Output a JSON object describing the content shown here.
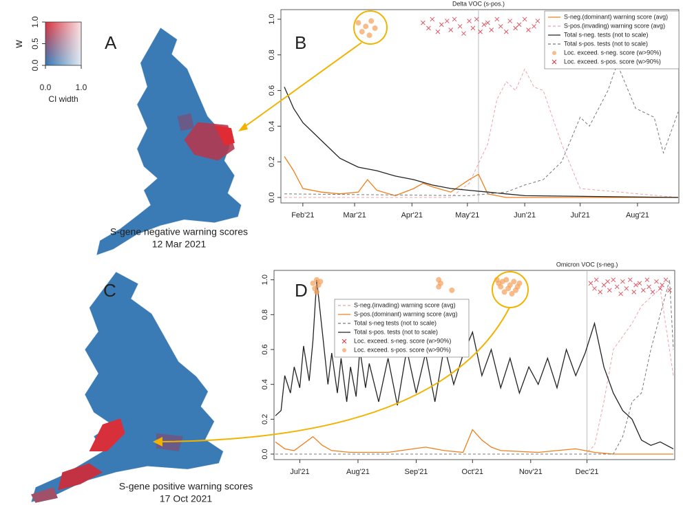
{
  "panels": [
    {
      "letter": "A",
      "caption": [
        "S-gene negative warning scores",
        "12 Mar 2021"
      ]
    },
    {
      "letter": "B"
    },
    {
      "letter": "C",
      "caption": [
        "S-gene positive warning scores",
        "17 Oct 2021"
      ]
    },
    {
      "letter": "D"
    }
  ],
  "colorbar": {
    "title": "w",
    "xlabel": "CI width",
    "yticks": [
      {
        "value": 0,
        "label": "0.0"
      },
      {
        "value": 0.5,
        "label": "0.5"
      },
      {
        "value": 1,
        "label": "1.0"
      }
    ],
    "xticks": [
      {
        "value": 0,
        "label": "0.0"
      },
      {
        "value": 1,
        "label": "1.0"
      }
    ]
  },
  "chart_data": [
    {
      "type": "line",
      "legend": "upper right",
      "xlim": [
        0,
        213
      ],
      "ylim": [
        0,
        1.05
      ],
      "xticks": [
        {
          "value": 10,
          "label": "Feb'21"
        },
        {
          "value": 38,
          "label": "Mar'21"
        },
        {
          "value": 69,
          "label": "Apr'21"
        },
        {
          "value": 99,
          "label": "May'21"
        },
        {
          "value": 130,
          "label": "Jun'21"
        },
        {
          "value": 160,
          "label": "Jul'21"
        },
        {
          "value": 191,
          "label": "Aug'21"
        }
      ],
      "yticks": [
        {
          "value": 0,
          "label": "0.0"
        },
        {
          "value": 0.2,
          "label": "0.2"
        },
        {
          "value": 0.4,
          "label": "0.4"
        },
        {
          "value": 0.6,
          "label": "0.6"
        },
        {
          "value": 0.8,
          "label": "0.8"
        },
        {
          "value": 1,
          "label": "1.0"
        }
      ],
      "vline": {
        "x": 105,
        "label": "Delta VOC (s-pos.)"
      },
      "series": [
        {
          "name": "S-neg.(dominant) warning score (avg)",
          "color": "#f07f1a",
          "style": "solid",
          "x": [
            0,
            5,
            10,
            20,
            30,
            40,
            45,
            50,
            60,
            70,
            75,
            80,
            90,
            100,
            105,
            110,
            120,
            213
          ],
          "values": [
            0.23,
            0.15,
            0.05,
            0.03,
            0.02,
            0.03,
            0.1,
            0.04,
            0.01,
            0.05,
            0.08,
            0.06,
            0.03,
            0.1,
            0.13,
            0.02,
            0,
            0
          ]
        },
        {
          "name": "S-pos.(invading) warning score (avg)",
          "color": "#f0a0a8",
          "style": "dashed",
          "x": [
            0,
            90,
            100,
            110,
            115,
            120,
            125,
            130,
            135,
            140,
            150,
            160,
            213
          ],
          "values": [
            0,
            0,
            0.08,
            0.3,
            0.55,
            0.65,
            0.6,
            0.72,
            0.62,
            0.6,
            0.3,
            0.05,
            0
          ]
        },
        {
          "name": "Total s-neg. tests (not to scale)",
          "color": "#222222",
          "style": "solid",
          "x": [
            0,
            5,
            10,
            20,
            30,
            40,
            50,
            60,
            70,
            80,
            90,
            100,
            110,
            120,
            130,
            213
          ],
          "values": [
            0.62,
            0.5,
            0.42,
            0.32,
            0.22,
            0.17,
            0.15,
            0.12,
            0.1,
            0.07,
            0.05,
            0.04,
            0.03,
            0.02,
            0.01,
            0
          ]
        },
        {
          "name": "Total s-pos. tests (not to scale)",
          "color": "#777777",
          "style": "dashed",
          "x": [
            0,
            100,
            110,
            120,
            130,
            140,
            150,
            160,
            165,
            170,
            175,
            180,
            190,
            200,
            205,
            213
          ],
          "values": [
            0.02,
            0.01,
            0.02,
            0.03,
            0.07,
            0.1,
            0.2,
            0.45,
            0.4,
            0.5,
            0.6,
            0.75,
            0.5,
            0.45,
            0.25,
            0.48
          ]
        },
        {
          "name": "Loc. exceed. s-neg. score (w>90%)",
          "color": "#f5a05a",
          "style": "circle",
          "x": [
            40,
            42,
            44,
            46,
            47,
            49
          ],
          "values": [
            0.98,
            0.93,
            0.96,
            0.91,
            0.99,
            0.95
          ]
        },
        {
          "name": "Loc. exceed. s-pos. score (w>90%)",
          "color": "#d92b3a",
          "style": "cross",
          "x": [
            75,
            78,
            80,
            83,
            85,
            88,
            90,
            92,
            95,
            97,
            100,
            102,
            104,
            106,
            108,
            110,
            112,
            115,
            117,
            120,
            122,
            125,
            127,
            130,
            132,
            135,
            137
          ],
          "values": [
            0.98,
            0.95,
            1.0,
            0.93,
            0.97,
            0.99,
            0.94,
            1.0,
            0.96,
            0.92,
            0.99,
            0.95,
            1.0,
            0.93,
            0.97,
            0.98,
            0.94,
            1.0,
            0.96,
            0.93,
            0.99,
            0.95,
            0.97,
            1.0,
            0.94,
            0.96,
            0.99
          ]
        }
      ]
    },
    {
      "type": "line",
      "legend": "upper left",
      "xlim": [
        0,
        212
      ],
      "ylim": [
        0,
        1.05
      ],
      "xticks": [
        {
          "value": 13,
          "label": "Jul'21"
        },
        {
          "value": 44,
          "label": "Aug'21"
        },
        {
          "value": 75,
          "label": "Sep'21"
        },
        {
          "value": 105,
          "label": "Oct'21"
        },
        {
          "value": 136,
          "label": "Nov'21"
        },
        {
          "value": 166,
          "label": "Dec'21"
        }
      ],
      "yticks": [
        {
          "value": 0,
          "label": "0.0"
        },
        {
          "value": 0.2,
          "label": "0.2"
        },
        {
          "value": 0.4,
          "label": "0.4"
        },
        {
          "value": 0.6,
          "label": "0.6"
        },
        {
          "value": 0.8,
          "label": "0.8"
        },
        {
          "value": 1,
          "label": "1.0"
        }
      ],
      "vline": {
        "x": 166,
        "label": "Omicron VOC (s-neg.)"
      },
      "series": [
        {
          "name": "S-neg.(invading) warning score (avg)",
          "color": "#f0a0a8",
          "style": "dashed",
          "x": [
            0,
            165,
            170,
            175,
            180,
            190,
            195,
            200,
            205,
            212
          ],
          "values": [
            0,
            0,
            0.05,
            0.3,
            0.6,
            0.75,
            0.85,
            0.9,
            0.95,
            0.45
          ]
        },
        {
          "name": "S-pos.(dominant) warning score (avg)",
          "color": "#f07f1a",
          "style": "solid",
          "x": [
            0,
            5,
            10,
            20,
            25,
            30,
            40,
            60,
            80,
            90,
            100,
            105,
            110,
            115,
            120,
            140,
            150,
            160,
            170,
            180,
            212
          ],
          "values": [
            0.07,
            0.03,
            0.02,
            0.1,
            0.05,
            0.02,
            0.01,
            0.01,
            0.04,
            0.02,
            0.01,
            0.14,
            0.08,
            0.04,
            0.02,
            0.01,
            0.02,
            0.03,
            0.01,
            0,
            0
          ]
        },
        {
          "name": "Total s-neg tests (not to scale)",
          "color": "#777777",
          "style": "dashed",
          "x": [
            0,
            180,
            185,
            190,
            195,
            200,
            205,
            210,
            212
          ],
          "values": [
            0,
            0,
            0.1,
            0.3,
            0.35,
            0.6,
            0.8,
            1.0,
            0.6
          ]
        },
        {
          "name": "Total s-pos. tests (not to scale)",
          "color": "#222222",
          "style": "solid",
          "x": [
            0,
            3,
            5,
            8,
            10,
            13,
            15,
            18,
            20,
            22,
            25,
            28,
            30,
            33,
            35,
            38,
            40,
            43,
            45,
            48,
            50,
            55,
            60,
            65,
            70,
            75,
            80,
            85,
            90,
            95,
            100,
            105,
            110,
            115,
            120,
            125,
            130,
            135,
            140,
            145,
            150,
            155,
            160,
            165,
            170,
            175,
            180,
            185,
            190,
            195,
            200,
            205,
            212
          ],
          "values": [
            0.22,
            0.25,
            0.45,
            0.35,
            0.5,
            0.38,
            0.62,
            0.42,
            0.65,
            1.0,
            0.7,
            0.4,
            0.58,
            0.35,
            0.55,
            0.3,
            0.5,
            0.33,
            0.6,
            0.38,
            0.52,
            0.3,
            0.55,
            0.28,
            0.6,
            0.35,
            0.58,
            0.3,
            0.62,
            0.4,
            0.57,
            0.7,
            0.45,
            0.6,
            0.38,
            0.55,
            0.35,
            0.5,
            0.4,
            0.55,
            0.38,
            0.6,
            0.45,
            0.58,
            0.75,
            0.5,
            0.35,
            0.25,
            0.2,
            0.08,
            0.05,
            0.07,
            0.03
          ]
        },
        {
          "name": "Loc. exceed. s-neg. score (w>90%)",
          "color": "#d92b3a",
          "style": "cross",
          "x": [
            168,
            170,
            171,
            173,
            175,
            177,
            178,
            180,
            182,
            184,
            185,
            187,
            189,
            191,
            192,
            194,
            196,
            198,
            199,
            201,
            203,
            205,
            206,
            208,
            210
          ],
          "values": [
            0.98,
            0.95,
            1.0,
            0.93,
            0.97,
            0.99,
            0.94,
            1.0,
            0.96,
            0.92,
            0.99,
            0.95,
            1.0,
            0.93,
            0.97,
            0.98,
            0.94,
            1.0,
            0.96,
            0.93,
            0.99,
            0.95,
            0.97,
            1.0,
            0.94
          ]
        },
        {
          "name": "Loc. exceed. s-pos. score (w>90%)",
          "color": "#f5a05a",
          "style": "circle",
          "x": [
            20,
            21,
            22,
            22,
            23,
            24,
            87,
            87,
            88,
            94,
            118,
            119,
            120,
            121,
            122,
            123,
            124,
            125,
            126,
            127,
            128,
            129,
            130
          ],
          "values": [
            0.98,
            0.95,
            1.0,
            0.93,
            0.97,
            0.99,
            1.0,
            0.96,
            0.98,
            0.94,
            1.0,
            0.98,
            0.96,
            0.99,
            0.93,
            1.0,
            0.95,
            0.97,
            0.92,
            0.99,
            0.94,
            0.96,
            0.98
          ]
        }
      ]
    }
  ]
}
